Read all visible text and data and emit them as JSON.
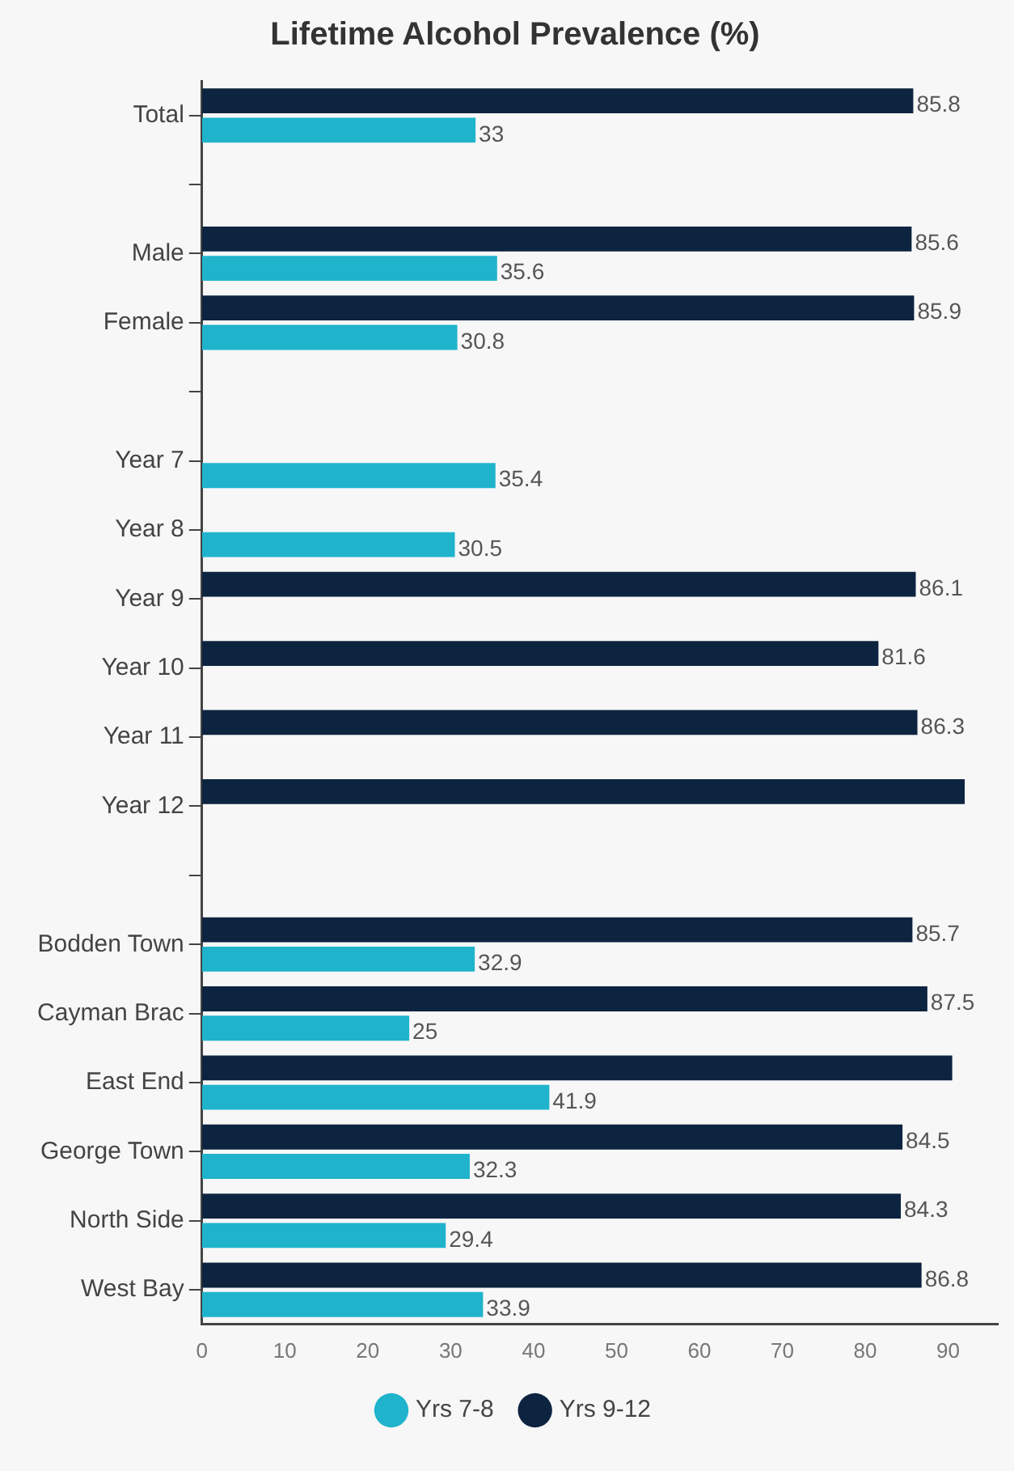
{
  "chart_data": {
    "type": "bar",
    "orientation": "horizontal",
    "title": "Lifetime Alcohol Prevalence (%)",
    "categories": [
      "Total",
      null,
      "Male",
      "Female",
      null,
      "Year 7",
      "Year 8",
      "Year 9",
      "Year 10",
      "Year 11",
      "Year 12",
      null,
      "Bodden Town",
      "Cayman Brac",
      "East End",
      "George Town",
      "North Side",
      "West Bay"
    ],
    "series": [
      {
        "name": "Yrs 7-8",
        "color": "#1fb3cc",
        "values": [
          33,
          null,
          35.6,
          30.8,
          null,
          35.4,
          30.5,
          null,
          null,
          null,
          null,
          null,
          32.9,
          25,
          41.9,
          32.3,
          29.4,
          33.9
        ],
        "value_labels": [
          "33",
          null,
          "35.6",
          "30.8",
          null,
          "35.4",
          "30.5",
          null,
          null,
          null,
          null,
          null,
          "32.9",
          "25",
          "41.9",
          "32.3",
          "29.4",
          "33.9"
        ]
      },
      {
        "name": "Yrs 9-12",
        "color": "#0d2440",
        "values": [
          85.8,
          null,
          85.6,
          85.9,
          null,
          null,
          null,
          86.1,
          81.6,
          86.3,
          92,
          null,
          85.7,
          87.5,
          90.5,
          84.5,
          84.3,
          86.8
        ],
        "value_labels": [
          "85.8",
          null,
          "85.6",
          "85.9",
          null,
          null,
          null,
          "86.1",
          "81.6",
          "86.3",
          null,
          null,
          "85.7",
          "87.5",
          null,
          "84.5",
          "84.3",
          "86.8"
        ]
      }
    ],
    "xlim": [
      0,
      96
    ],
    "xticks": [
      0,
      10,
      20,
      30,
      40,
      50,
      60,
      70,
      80,
      90
    ],
    "grid": false,
    "legend": "bottom"
  }
}
